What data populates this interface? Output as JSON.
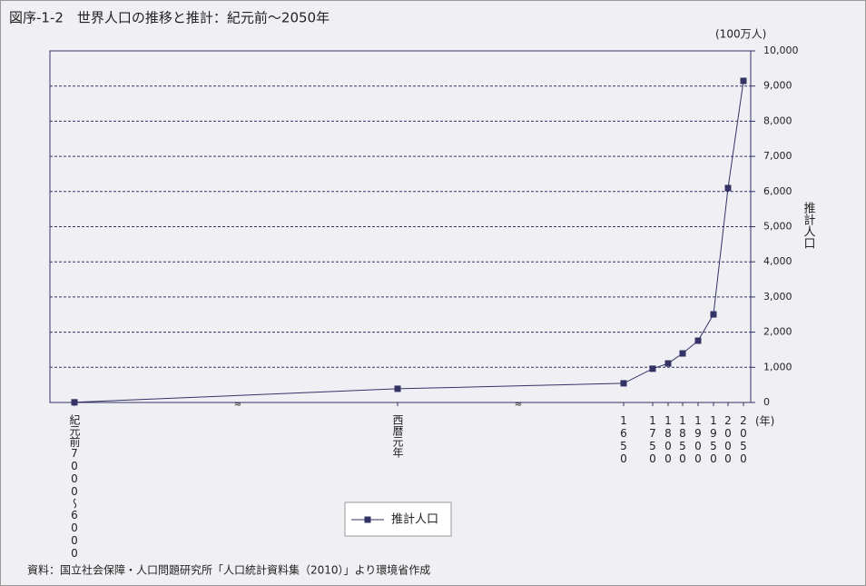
{
  "chart_data": {
    "type": "line",
    "title": "図序-1-2　世界人口の推移と推計：紀元前〜2050年",
    "unit_label": "(100万人)",
    "x_label": "(年)",
    "y_label": "推計人口",
    "categories": [
      "紀元前7000〜6000",
      "西暦元年",
      "1650",
      "1750",
      "1800",
      "1850",
      "1900",
      "1950",
      "2000",
      "2050"
    ],
    "series": [
      {
        "name": "推計人口",
        "color": "#333366",
        "values": [
          5,
          390,
          545,
          960,
          1110,
          1395,
          1757,
          2506,
          6098,
          9147
        ]
      }
    ],
    "ylim": [
      0,
      10000
    ],
    "yticks": [
      0,
      {
        "value": 1000,
        "label": "1,000"
      },
      {
        "value": 2000,
        "label": "2,000"
      },
      {
        "value": 3000,
        "label": "3,000"
      },
      {
        "value": 4000,
        "label": "4,000"
      },
      {
        "value": 5000,
        "label": "5,000"
      },
      {
        "value": 6000,
        "label": "6,000"
      },
      {
        "value": 7000,
        "label": "7,000"
      },
      {
        "value": 8000,
        "label": "8,000"
      },
      {
        "value": 9000,
        "label": "9,000"
      },
      {
        "value": 10000,
        "label": "10,000"
      }
    ],
    "grid": true,
    "legend": "bottom",
    "source": "資料：国立社会保障・人口問題研究所「人口統計資料集（2010）」より環境省作成"
  }
}
